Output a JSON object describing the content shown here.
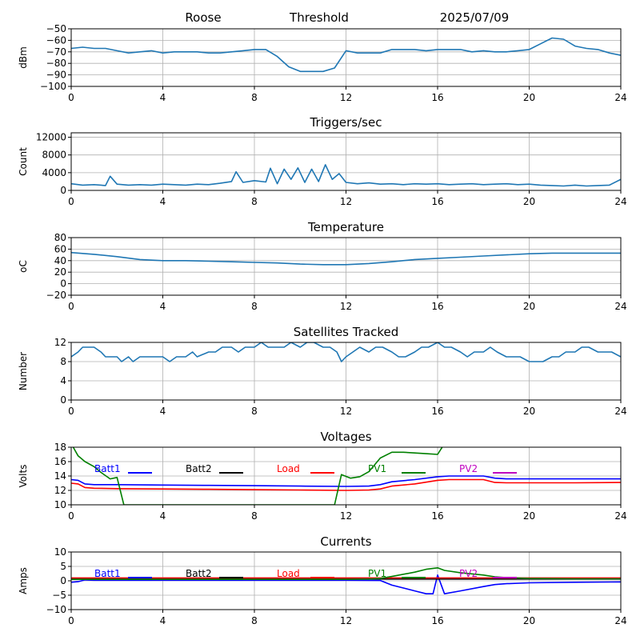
{
  "header": {
    "station": "Roose",
    "mode": "Threshold",
    "date": "2025/07/09"
  },
  "colors": {
    "series_default": "#1f77b4",
    "batt1": "#0000ff",
    "batt2": "#000000",
    "load": "#ff0000",
    "pv1": "#008000",
    "pv2": "#bf00bf",
    "grid": "#b0b0b0"
  },
  "chart_data": [
    {
      "type": "line",
      "title": "",
      "xlabel": "",
      "ylabel": "dBm",
      "xlim": [
        0,
        24
      ],
      "ylim": [
        -100,
        -50
      ],
      "xticks": [
        0,
        4,
        8,
        12,
        16,
        20,
        24
      ],
      "yticks": [
        -100,
        -90,
        -80,
        -70,
        -60,
        -50
      ],
      "grid": true,
      "series": [
        {
          "color": "#1f77b4",
          "x": [
            0,
            0.5,
            1,
            1.5,
            2,
            2.5,
            3,
            3.5,
            4,
            4.5,
            5,
            5.5,
            6,
            6.5,
            7,
            7.5,
            8,
            8.5,
            9,
            9.5,
            10,
            10.5,
            11,
            11.5,
            12,
            12.5,
            13,
            13.5,
            14,
            14.5,
            15,
            15.5,
            16,
            16.5,
            17,
            17.5,
            18,
            18.5,
            19,
            19.5,
            20,
            20.5,
            21,
            21.5,
            22,
            22.5,
            23,
            23.5,
            24
          ],
          "y": [
            -67,
            -66,
            -67,
            -67,
            -69,
            -71,
            -70,
            -69,
            -71,
            -70,
            -70,
            -70,
            -71,
            -71,
            -70,
            -69,
            -68,
            -68,
            -74,
            -83,
            -87,
            -87,
            -87,
            -84,
            -69,
            -71,
            -71,
            -71,
            -68,
            -68,
            -68,
            -69,
            -68,
            -68,
            -68,
            -70,
            -69,
            -70,
            -70,
            -69,
            -68,
            -63,
            -58,
            -59,
            -65,
            -67,
            -68,
            -71,
            -73
          ]
        }
      ]
    },
    {
      "type": "line",
      "title": "Triggers/sec",
      "xlabel": "",
      "ylabel": "Count",
      "xlim": [
        0,
        24
      ],
      "ylim": [
        0,
        13000
      ],
      "xticks": [
        0,
        4,
        8,
        12,
        16,
        20,
        24
      ],
      "yticks": [
        0,
        4000,
        8000,
        12000
      ],
      "grid": true,
      "series": [
        {
          "color": "#1f77b4",
          "x": [
            0,
            0.5,
            1,
            1.5,
            1.7,
            2,
            2.5,
            3,
            3.5,
            4,
            4.5,
            5,
            5.5,
            6,
            6.5,
            7,
            7.2,
            7.5,
            8,
            8.5,
            8.7,
            9,
            9.3,
            9.6,
            9.9,
            10.2,
            10.5,
            10.8,
            11.1,
            11.4,
            11.7,
            12,
            12.5,
            13,
            13.5,
            14,
            14.5,
            15,
            15.5,
            16,
            16.5,
            17,
            17.5,
            18,
            18.5,
            19,
            19.5,
            20,
            20.5,
            21,
            21.5,
            22,
            22.5,
            23,
            23.5,
            24
          ],
          "y": [
            1500,
            1200,
            1300,
            1100,
            3200,
            1400,
            1200,
            1300,
            1200,
            1400,
            1300,
            1200,
            1400,
            1300,
            1600,
            2000,
            4200,
            1800,
            2200,
            1900,
            5000,
            1500,
            4800,
            2500,
            5100,
            1800,
            4800,
            2000,
            5800,
            2500,
            3800,
            1800,
            1500,
            1700,
            1400,
            1500,
            1300,
            1500,
            1400,
            1500,
            1300,
            1400,
            1500,
            1300,
            1400,
            1500,
            1300,
            1400,
            1200,
            1100,
            1000,
            1200,
            1000,
            1100,
            1200,
            2500
          ]
        }
      ]
    },
    {
      "type": "line",
      "title": "Temperature",
      "xlabel": "",
      "ylabel": "oC",
      "xlim": [
        0,
        24
      ],
      "ylim": [
        -20,
        80
      ],
      "xticks": [
        0,
        4,
        8,
        12,
        16,
        20,
        24
      ],
      "yticks": [
        -20,
        0,
        20,
        40,
        60,
        80
      ],
      "grid": true,
      "series": [
        {
          "color": "#1f77b4",
          "x": [
            0,
            1,
            2,
            3,
            4,
            5,
            6,
            7,
            8,
            9,
            10,
            11,
            12,
            13,
            14,
            15,
            16,
            17,
            18,
            19,
            20,
            21,
            22,
            23,
            24
          ],
          "y": [
            54,
            51,
            47,
            42,
            40,
            40,
            39,
            38,
            37,
            36,
            34,
            33,
            33,
            35,
            38,
            42,
            44,
            46,
            48,
            50,
            52,
            53,
            53,
            53,
            53
          ]
        }
      ]
    },
    {
      "type": "line",
      "title": "Satellites Tracked",
      "xlabel": "",
      "ylabel": "Number",
      "xlim": [
        0,
        24
      ],
      "ylim": [
        0,
        12
      ],
      "xticks": [
        0,
        4,
        8,
        12,
        16,
        20,
        24
      ],
      "yticks": [
        0,
        4,
        8,
        12
      ],
      "grid": true,
      "series": [
        {
          "color": "#1f77b4",
          "x": [
            0,
            0.3,
            0.5,
            1,
            1.3,
            1.5,
            2,
            2.2,
            2.5,
            2.7,
            3,
            3.5,
            4,
            4.3,
            4.6,
            5,
            5.3,
            5.5,
            6,
            6.3,
            6.6,
            7,
            7.3,
            7.6,
            8,
            8.3,
            8.6,
            9,
            9.3,
            9.6,
            10,
            10.3,
            10.6,
            11,
            11.3,
            11.6,
            11.8,
            12,
            12.3,
            12.6,
            13,
            13.3,
            13.6,
            14,
            14.3,
            14.6,
            15,
            15.3,
            15.6,
            16,
            16.3,
            16.6,
            17,
            17.3,
            17.6,
            18,
            18.3,
            18.6,
            19,
            19.3,
            19.6,
            20,
            20.3,
            20.6,
            21,
            21.3,
            21.6,
            22,
            22.3,
            22.6,
            23,
            23.3,
            23.6,
            24
          ],
          "y": [
            9,
            10,
            11,
            11,
            10,
            9,
            9,
            8,
            9,
            8,
            9,
            9,
            9,
            8,
            9,
            9,
            10,
            9,
            10,
            10,
            11,
            11,
            10,
            11,
            11,
            12,
            11,
            11,
            11,
            12,
            11,
            12,
            12,
            11,
            11,
            10,
            8,
            9,
            10,
            11,
            10,
            11,
            11,
            10,
            9,
            9,
            10,
            11,
            11,
            12,
            11,
            11,
            10,
            9,
            10,
            10,
            11,
            10,
            9,
            9,
            9,
            8,
            8,
            8,
            9,
            9,
            10,
            10,
            11,
            11,
            10,
            10,
            10,
            9
          ]
        }
      ]
    },
    {
      "type": "line",
      "title": "Voltages",
      "xlabel": "",
      "ylabel": "Volts",
      "xlim": [
        0,
        24
      ],
      "ylim": [
        10,
        18
      ],
      "xticks": [
        0,
        4,
        8,
        12,
        16,
        20,
        24
      ],
      "yticks": [
        10,
        12,
        14,
        16,
        18
      ],
      "grid": true,
      "legend": [
        "Batt1",
        "Batt2",
        "Load",
        "PV1",
        "PV2"
      ],
      "series": [
        {
          "name": "Batt1",
          "color": "#0000ff",
          "x": [
            0,
            0.3,
            0.6,
            1,
            2,
            4,
            6,
            8,
            10,
            12,
            13,
            13.5,
            14,
            15,
            16,
            16.5,
            17,
            18,
            18.5,
            19,
            20,
            22,
            24
          ],
          "y": [
            13.5,
            13.4,
            12.9,
            12.8,
            12.8,
            12.75,
            12.7,
            12.65,
            12.6,
            12.55,
            12.6,
            12.8,
            13.2,
            13.5,
            13.9,
            14.0,
            14.0,
            14.0,
            13.7,
            13.6,
            13.6,
            13.6,
            13.6
          ]
        },
        {
          "name": "Load",
          "color": "#ff0000",
          "x": [
            0,
            0.3,
            0.6,
            1,
            2,
            4,
            6,
            8,
            10,
            12,
            13,
            13.5,
            14,
            15,
            16,
            16.5,
            17,
            18,
            18.5,
            19,
            20,
            22,
            24
          ],
          "y": [
            13.0,
            12.9,
            12.4,
            12.3,
            12.25,
            12.2,
            12.15,
            12.1,
            12.05,
            12.0,
            12.05,
            12.2,
            12.6,
            12.9,
            13.4,
            13.5,
            13.5,
            13.5,
            13.1,
            13.05,
            13.05,
            13.05,
            13.1
          ]
        },
        {
          "name": "PV1",
          "color": "#008000",
          "x": [
            0,
            0.3,
            0.6,
            1,
            1.3,
            1.7,
            2.0,
            2.3,
            11.5,
            11.8,
            12.2,
            12.6,
            13,
            13.5,
            14,
            14.5,
            15,
            15.5,
            16,
            16.3
          ],
          "y": [
            18.5,
            16.8,
            16.0,
            15.3,
            14.5,
            13.6,
            13.8,
            10.0,
            10.0,
            14.2,
            13.7,
            13.9,
            14.6,
            16.5,
            17.3,
            17.3,
            17.2,
            17.1,
            17.0,
            18.5
          ]
        }
      ]
    },
    {
      "type": "line",
      "title": "Currents",
      "xlabel": "",
      "ylabel": "Amps",
      "xlim": [
        0,
        24
      ],
      "ylim": [
        -10,
        10
      ],
      "xticks": [
        0,
        4,
        8,
        12,
        16,
        20,
        24
      ],
      "yticks": [
        -10,
        -5,
        0,
        5,
        10
      ],
      "grid": true,
      "legend": [
        "Batt1",
        "Batt2",
        "Load",
        "PV1",
        "PV2"
      ],
      "series": [
        {
          "name": "Batt1",
          "color": "#0000ff",
          "x": [
            0,
            0.3,
            0.6,
            1,
            4,
            8,
            12,
            13.5,
            14,
            15,
            15.5,
            15.8,
            16.0,
            16.3,
            17,
            18,
            18.5,
            19,
            20,
            22,
            24
          ],
          "y": [
            -0.5,
            -0.3,
            0.3,
            0.2,
            0.2,
            0.2,
            0.2,
            0.1,
            -1.5,
            -3.5,
            -4.5,
            -4.5,
            2.0,
            -4.5,
            -3.5,
            -2.0,
            -1.3,
            -1.0,
            -0.7,
            -0.5,
            -0.4
          ]
        },
        {
          "name": "Batt2",
          "color": "#000000",
          "x": [
            0,
            24
          ],
          "y": [
            0.6,
            0.6
          ]
        },
        {
          "name": "Load",
          "color": "#ff0000",
          "x": [
            0,
            24
          ],
          "y": [
            1.0,
            1.0
          ]
        },
        {
          "name": "PV1",
          "color": "#008000",
          "x": [
            0,
            12,
            13,
            13.5,
            14,
            15,
            15.5,
            16,
            16.3,
            17,
            18,
            18.5,
            19,
            20,
            22,
            24
          ],
          "y": [
            0.5,
            0.5,
            0.6,
            0.8,
            1.5,
            3.0,
            4.0,
            4.5,
            3.6,
            2.8,
            2.0,
            1.4,
            1.1,
            0.8,
            0.7,
            0.7
          ]
        }
      ]
    }
  ]
}
